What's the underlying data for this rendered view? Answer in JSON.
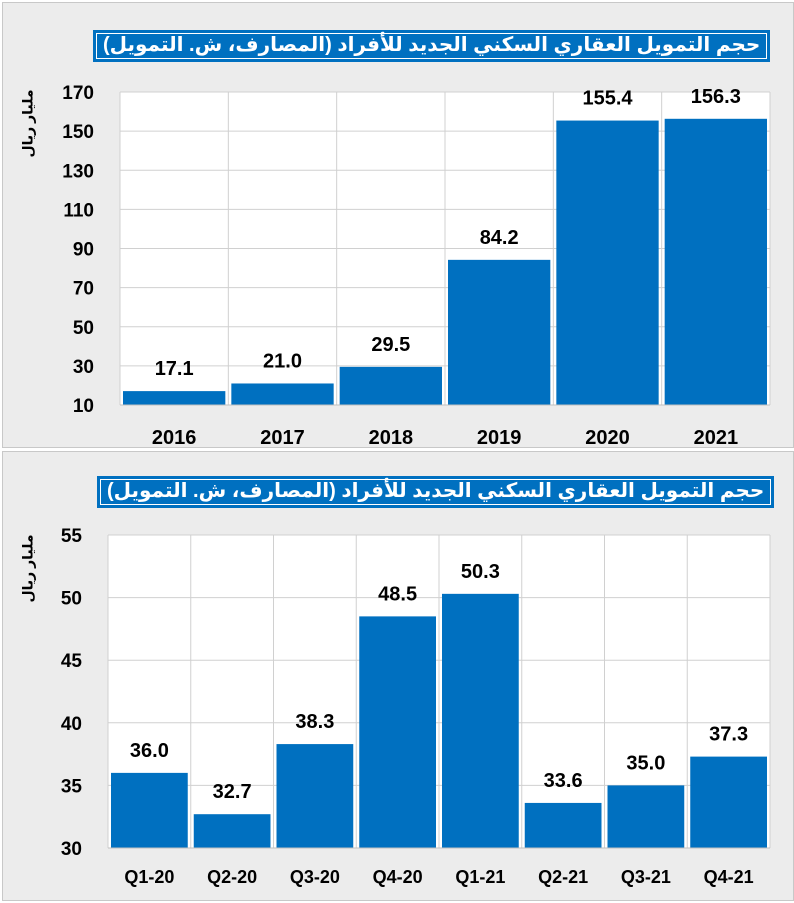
{
  "chart_data": [
    {
      "type": "bar",
      "title": "حجم التمويل العقاري السكني الجديد للأفراد (المصارف، ش. التمويل)",
      "ylabel": "مليار ريال",
      "categories": [
        "2016",
        "2017",
        "2018",
        "2019",
        "2020",
        "2021"
      ],
      "values": [
        17.1,
        21.0,
        29.5,
        84.2,
        155.4,
        156.3
      ],
      "value_labels": [
        "17.1",
        "21.0",
        "29.5",
        "84.2",
        "155.4",
        "156.3"
      ],
      "ylim": [
        10,
        170
      ],
      "yticks": [
        10,
        30,
        50,
        70,
        90,
        110,
        130,
        150,
        170
      ],
      "grid": true,
      "color": "#0070c0"
    },
    {
      "type": "bar",
      "title": "حجم التمويل العقاري السكني الجديد للأفراد (المصارف، ش. التمويل)",
      "ylabel": "مليار ريال",
      "categories": [
        "Q1-20",
        "Q2-20",
        "Q3-20",
        "Q4-20",
        "Q1-21",
        "Q2-21",
        "Q3-21",
        "Q4-21"
      ],
      "values": [
        36.0,
        32.7,
        38.3,
        48.5,
        50.3,
        33.6,
        35.0,
        37.3
      ],
      "value_labels": [
        "36.0",
        "32.7",
        "38.3",
        "48.5",
        "50.3",
        "33.6",
        "35.0",
        "37.3"
      ],
      "ylim": [
        30,
        55
      ],
      "yticks": [
        30,
        35,
        40,
        45,
        50,
        55
      ],
      "grid": true,
      "color": "#0070c0"
    }
  ]
}
